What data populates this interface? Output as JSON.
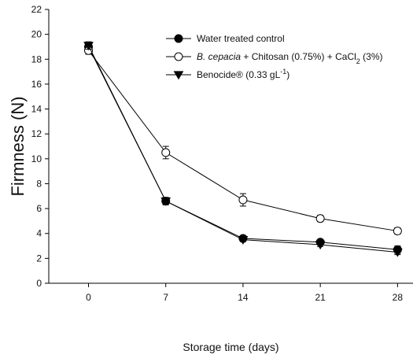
{
  "chart_data": {
    "type": "line",
    "xlabel": "Storage time (days)",
    "ylabel": "Firmness (N)",
    "x": [
      0,
      7,
      14,
      21,
      28
    ],
    "xticks": [
      "0",
      "7",
      "14",
      "21",
      "28"
    ],
    "yticks": [
      "0",
      "2",
      "4",
      "6",
      "8",
      "10",
      "12",
      "14",
      "16",
      "18",
      "20",
      "22"
    ],
    "xlim": [
      -3.6,
      29.4
    ],
    "ylim": [
      0,
      22
    ],
    "grid": false,
    "legend_position": "top-right",
    "series": [
      {
        "name": "Water treated control",
        "legend_parts": [
          {
            "text": "Water treated control",
            "style": "normal"
          }
        ],
        "marker": "filled-circle",
        "values": [
          19.0,
          6.6,
          3.6,
          3.3,
          2.7
        ],
        "errors": [
          0.3,
          0.3,
          0.2,
          0.15,
          0.3
        ]
      },
      {
        "name": "B. cepacia + Chitosan (0.75%) + CaCl2 (3%)",
        "legend_parts": [
          {
            "text": "B. cepacia",
            "style": "italic"
          },
          {
            "text": " + Chitosan (0.75%) + CaCl",
            "style": "normal"
          },
          {
            "text": "2",
            "style": "sub"
          },
          {
            "text": " (3%)",
            "style": "normal"
          }
        ],
        "marker": "open-circle",
        "values": [
          18.7,
          10.5,
          6.7,
          5.2,
          4.2
        ],
        "errors": [
          0.3,
          0.5,
          0.5,
          0.25,
          0.25
        ]
      },
      {
        "name": "Benocide® (0.33 gL-1)",
        "legend_parts": [
          {
            "text": "Benocide® (0.33 gL",
            "style": "normal"
          },
          {
            "text": "-1",
            "style": "sup"
          },
          {
            "text": ")",
            "style": "normal"
          }
        ],
        "marker": "filled-triangle-down",
        "values": [
          19.1,
          6.6,
          3.5,
          3.1,
          2.5
        ],
        "errors": [
          0.3,
          0.25,
          0.15,
          0.15,
          0.2
        ]
      }
    ]
  }
}
